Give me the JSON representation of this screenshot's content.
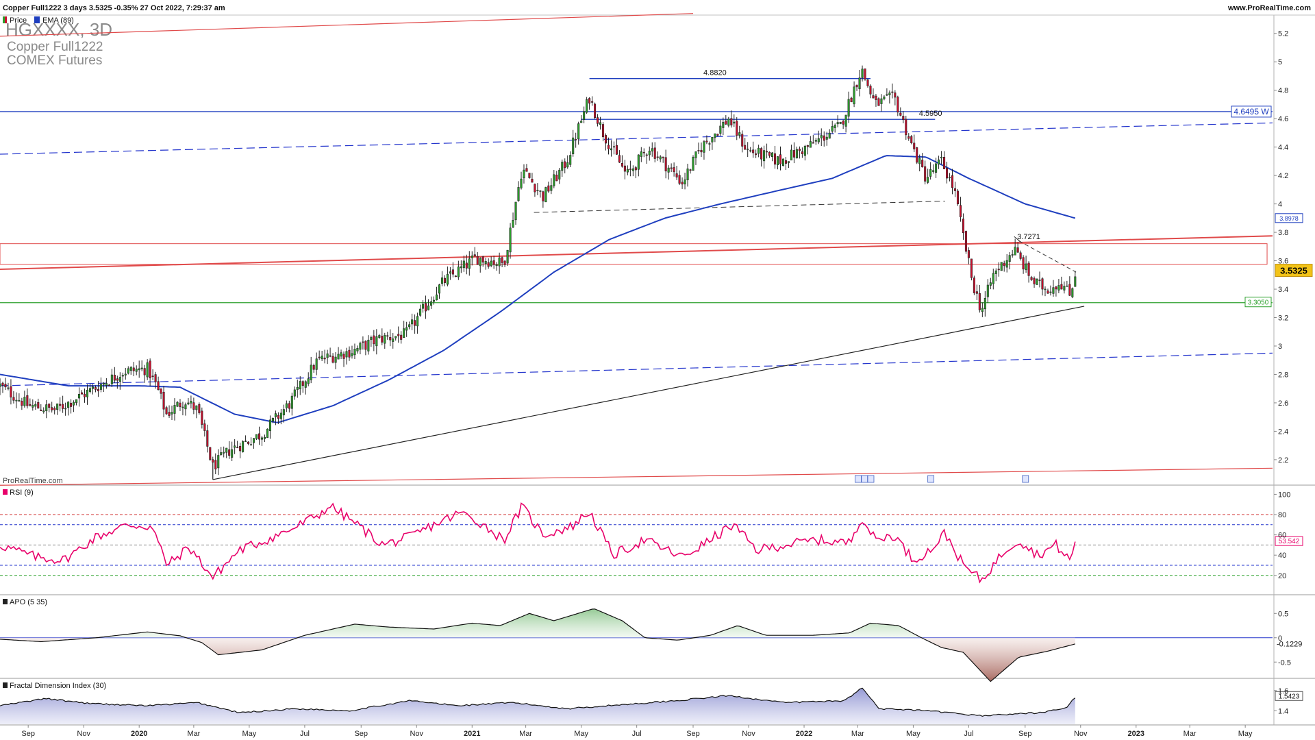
{
  "header": {
    "summary": "Copper Full1222 3 days 3.5325 -0.35% 27 Oct 2022, 7:29:37 am",
    "website": "www.ProRealTime.com"
  },
  "legend": {
    "price_label": "Price",
    "ema_label": "EMA (89)"
  },
  "instrument": {
    "symbol": "HGXXXX, 3D",
    "name": "Copper Full1222",
    "exchange": "COMEX Futures"
  },
  "watermark": "ProRealTime.com",
  "colors": {
    "up": "#2ca02c",
    "down": "#c8102e",
    "ema": "#1f3fbf",
    "rsi": "#e8006a",
    "support": "#2ca02c",
    "red_channel": "#e04a4a",
    "blue_dashed": "#2233cc",
    "black_trend": "#222222"
  },
  "chart_data": [
    {
      "type": "candlestick",
      "panel": "price",
      "ylim": [
        2.05,
        5.3
      ],
      "yticks": [
        2.2,
        2.4,
        2.6,
        2.8,
        3,
        3.2,
        3.4,
        3.6,
        3.8,
        4,
        4.2,
        4.4,
        4.6,
        4.8,
        5,
        5.2
      ],
      "xticks": [
        "Sep",
        "Nov",
        "2020",
        "Mar",
        "May",
        "Jul",
        "Sep",
        "Nov",
        "2021",
        "Mar",
        "May",
        "Jul",
        "Sep",
        "Nov",
        "2022",
        "Mar",
        "May",
        "Jul",
        "Sep",
        "Nov",
        "2023",
        "Mar",
        "May"
      ],
      "date_range": [
        "2019-08-01",
        "2023-05-31"
      ],
      "last_date": "2022-10-27",
      "close_anchors": [
        [
          "2019-08-01",
          2.72
        ],
        [
          "2019-09-01",
          2.58
        ],
        [
          "2019-10-01",
          2.55
        ],
        [
          "2019-11-01",
          2.66
        ],
        [
          "2019-12-15",
          2.82
        ],
        [
          "2020-01-10",
          2.84
        ],
        [
          "2020-01-20",
          2.72
        ],
        [
          "2020-01-31",
          2.52
        ],
        [
          "2020-02-20",
          2.62
        ],
        [
          "2020-03-05",
          2.55
        ],
        [
          "2020-03-22",
          2.15
        ],
        [
          "2020-04-10",
          2.27
        ],
        [
          "2020-05-15",
          2.38
        ],
        [
          "2020-06-15",
          2.6
        ],
        [
          "2020-07-15",
          2.9
        ],
        [
          "2020-08-25",
          2.97
        ],
        [
          "2020-09-20",
          3.05
        ],
        [
          "2020-10-20",
          3.08
        ],
        [
          "2020-11-30",
          3.45
        ],
        [
          "2021-01-05",
          3.62
        ],
        [
          "2021-02-05",
          3.58
        ],
        [
          "2021-02-25",
          4.25
        ],
        [
          "2021-03-20",
          4.05
        ],
        [
          "2021-04-15",
          4.3
        ],
        [
          "2021-05-10",
          4.75
        ],
        [
          "2021-05-25",
          4.5
        ],
        [
          "2021-06-20",
          4.2
        ],
        [
          "2021-07-15",
          4.4
        ],
        [
          "2021-08-20",
          4.15
        ],
        [
          "2021-09-10",
          4.4
        ],
        [
          "2021-10-10",
          4.6
        ],
        [
          "2021-10-30",
          4.38
        ],
        [
          "2021-12-05",
          4.3
        ],
        [
          "2022-01-05",
          4.4
        ],
        [
          "2022-02-10",
          4.55
        ],
        [
          "2022-03-05",
          4.95
        ],
        [
          "2022-03-20",
          4.7
        ],
        [
          "2022-04-10",
          4.75
        ],
        [
          "2022-04-30",
          4.4
        ],
        [
          "2022-05-15",
          4.18
        ],
        [
          "2022-06-01",
          4.3
        ],
        [
          "2022-06-15",
          4.1
        ],
        [
          "2022-07-05",
          3.45
        ],
        [
          "2022-07-15",
          3.25
        ],
        [
          "2022-07-28",
          3.5
        ],
        [
          "2022-08-20",
          3.68
        ],
        [
          "2022-09-10",
          3.45
        ],
        [
          "2022-09-25",
          3.4
        ],
        [
          "2022-10-10",
          3.45
        ],
        [
          "2022-10-20",
          3.36
        ],
        [
          "2022-10-27",
          3.5325
        ]
      ],
      "ema_period": 89,
      "ema_anchors": [
        [
          "2019-08-01",
          2.8
        ],
        [
          "2019-10-15",
          2.72
        ],
        [
          "2020-01-01",
          2.72
        ],
        [
          "2020-02-15",
          2.71
        ],
        [
          "2020-04-15",
          2.52
        ],
        [
          "2020-06-01",
          2.46
        ],
        [
          "2020-08-01",
          2.58
        ],
        [
          "2020-10-01",
          2.76
        ],
        [
          "2020-12-01",
          2.97
        ],
        [
          "2021-02-01",
          3.24
        ],
        [
          "2021-04-01",
          3.52
        ],
        [
          "2021-06-01",
          3.75
        ],
        [
          "2021-08-01",
          3.9
        ],
        [
          "2021-10-01",
          4.0
        ],
        [
          "2021-12-01",
          4.09
        ],
        [
          "2022-02-01",
          4.18
        ],
        [
          "2022-04-01",
          4.34
        ],
        [
          "2022-05-15",
          4.33
        ],
        [
          "2022-07-01",
          4.18
        ],
        [
          "2022-09-01",
          4.0
        ],
        [
          "2022-10-27",
          3.8978
        ]
      ],
      "lines": [
        {
          "kind": "resistance",
          "color": "#1f3fbf",
          "from": [
            "2019-08-01",
            4.6495
          ],
          "to": [
            "2023-05-31",
            4.6495
          ],
          "label": "4.6495 W"
        },
        {
          "kind": "support",
          "color": "#2ca02c",
          "from": [
            "2019-08-01",
            3.305
          ],
          "to": [
            "2023-05-31",
            3.305
          ],
          "label": "3.3050"
        },
        {
          "kind": "top-level",
          "color": "#1f3fbf",
          "from": [
            "2021-05-10",
            4.882
          ],
          "to": [
            "2022-03-15",
            4.882
          ],
          "label": "4.8820"
        },
        {
          "kind": "mid-level",
          "color": "#1f3fbf",
          "from": [
            "2021-05-01",
            4.595
          ],
          "to": [
            "2022-05-25",
            4.595
          ],
          "label": "4.5950"
        },
        {
          "kind": "swing",
          "color": "#222222",
          "from": [
            "2022-08-25",
            3.7271
          ],
          "to": [
            "2022-08-28",
            3.7271
          ],
          "label": "3.7271"
        }
      ],
      "last_price_label": "3.5325",
      "ema_label": "3.8978"
    },
    {
      "type": "line",
      "panel": "RSI (9)",
      "name": "RSI (9)",
      "ylim": [
        5,
        105
      ],
      "yticks": [
        20,
        40,
        60,
        80,
        100
      ],
      "levels": [
        80,
        70,
        50,
        30,
        20
      ],
      "last_label": "53.542",
      "anchors": [
        [
          "2019-08-01",
          50
        ],
        [
          "2019-09-10",
          38
        ],
        [
          "2019-10-10",
          35
        ],
        [
          "2019-11-15",
          58
        ],
        [
          "2019-12-20",
          70
        ],
        [
          "2020-01-15",
          68
        ],
        [
          "2020-02-01",
          30
        ],
        [
          "2020-02-25",
          48
        ],
        [
          "2020-03-22",
          18
        ],
        [
          "2020-04-20",
          45
        ],
        [
          "2020-05-20",
          55
        ],
        [
          "2020-06-20",
          67
        ],
        [
          "2020-07-20",
          82
        ],
        [
          "2020-07-28",
          89
        ],
        [
          "2020-08-25",
          72
        ],
        [
          "2020-09-25",
          50
        ],
        [
          "2020-10-25",
          58
        ],
        [
          "2020-11-20",
          70
        ],
        [
          "2020-12-20",
          82
        ],
        [
          "2021-01-10",
          72
        ],
        [
          "2021-02-05",
          55
        ],
        [
          "2021-02-25",
          88
        ],
        [
          "2021-03-20",
          60
        ],
        [
          "2021-04-20",
          68
        ],
        [
          "2021-05-10",
          83
        ],
        [
          "2021-06-05",
          40
        ],
        [
          "2021-07-10",
          55
        ],
        [
          "2021-08-20",
          38
        ],
        [
          "2021-09-15",
          52
        ],
        [
          "2021-10-15",
          70
        ],
        [
          "2021-11-10",
          45
        ],
        [
          "2021-12-10",
          50
        ],
        [
          "2022-01-15",
          55
        ],
        [
          "2022-02-20",
          52
        ],
        [
          "2022-03-05",
          78
        ],
        [
          "2022-03-20",
          55
        ],
        [
          "2022-04-10",
          60
        ],
        [
          "2022-05-01",
          35
        ],
        [
          "2022-05-20",
          45
        ],
        [
          "2022-06-05",
          62
        ],
        [
          "2022-06-25",
          30
        ],
        [
          "2022-07-15",
          15
        ],
        [
          "2022-08-10",
          45
        ],
        [
          "2022-08-25",
          55
        ],
        [
          "2022-09-15",
          40
        ],
        [
          "2022-10-05",
          50
        ],
        [
          "2022-10-20",
          35
        ],
        [
          "2022-10-27",
          53.542
        ]
      ]
    },
    {
      "type": "area",
      "panel": "APO (5 35)",
      "name": "APO (5 35)",
      "ylim": [
        -0.75,
        0.8
      ],
      "yticks": [
        0.5,
        0,
        -0.5
      ],
      "last_label": "-0.1229",
      "anchors": [
        [
          "2019-08-01",
          -0.03
        ],
        [
          "2019-09-15",
          -0.08
        ],
        [
          "2019-11-15",
          0.0
        ],
        [
          "2020-01-10",
          0.12
        ],
        [
          "2020-02-15",
          0.04
        ],
        [
          "2020-03-10",
          -0.1
        ],
        [
          "2020-03-28",
          -0.35
        ],
        [
          "2020-05-15",
          -0.25
        ],
        [
          "2020-07-01",
          0.05
        ],
        [
          "2020-08-25",
          0.28
        ],
        [
          "2020-10-01",
          0.22
        ],
        [
          "2020-11-20",
          0.18
        ],
        [
          "2021-01-01",
          0.3
        ],
        [
          "2021-02-01",
          0.25
        ],
        [
          "2021-03-05",
          0.5
        ],
        [
          "2021-04-01",
          0.35
        ],
        [
          "2021-05-15",
          0.6
        ],
        [
          "2021-06-15",
          0.35
        ],
        [
          "2021-07-10",
          0.0
        ],
        [
          "2021-08-15",
          -0.05
        ],
        [
          "2021-09-20",
          0.05
        ],
        [
          "2021-10-20",
          0.25
        ],
        [
          "2021-11-20",
          0.05
        ],
        [
          "2022-01-10",
          0.05
        ],
        [
          "2022-02-20",
          0.1
        ],
        [
          "2022-03-15",
          0.3
        ],
        [
          "2022-04-15",
          0.25
        ],
        [
          "2022-05-10",
          0.0
        ],
        [
          "2022-06-01",
          -0.2
        ],
        [
          "2022-06-25",
          -0.3
        ],
        [
          "2022-07-25",
          -0.9
        ],
        [
          "2022-08-25",
          -0.4
        ],
        [
          "2022-09-25",
          -0.28
        ],
        [
          "2022-10-27",
          -0.1229
        ]
      ]
    },
    {
      "type": "area",
      "panel": "Fractal Dimension Index (30)",
      "name": "Fractal Dimension Index (30)",
      "ylim": [
        1.3,
        1.68
      ],
      "yticks": [
        1.4,
        1.6
      ],
      "last_label": "1.5423",
      "anchors": [
        [
          "2019-08-01",
          1.45
        ],
        [
          "2019-09-20",
          1.52
        ],
        [
          "2019-11-10",
          1.47
        ],
        [
          "2020-01-10",
          1.45
        ],
        [
          "2020-03-05",
          1.48
        ],
        [
          "2020-04-20",
          1.38
        ],
        [
          "2020-06-20",
          1.42
        ],
        [
          "2020-08-20",
          1.4
        ],
        [
          "2020-10-25",
          1.5
        ],
        [
          "2020-12-15",
          1.45
        ],
        [
          "2021-02-15",
          1.48
        ],
        [
          "2021-04-15",
          1.42
        ],
        [
          "2021-06-15",
          1.46
        ],
        [
          "2021-08-15",
          1.5
        ],
        [
          "2021-10-10",
          1.55
        ],
        [
          "2021-12-10",
          1.48
        ],
        [
          "2022-02-15",
          1.5
        ],
        [
          "2022-03-05",
          1.63
        ],
        [
          "2022-03-25",
          1.42
        ],
        [
          "2022-05-15",
          1.4
        ],
        [
          "2022-07-15",
          1.35
        ],
        [
          "2022-09-15",
          1.38
        ],
        [
          "2022-10-15",
          1.42
        ],
        [
          "2022-10-27",
          1.5423
        ]
      ]
    }
  ]
}
